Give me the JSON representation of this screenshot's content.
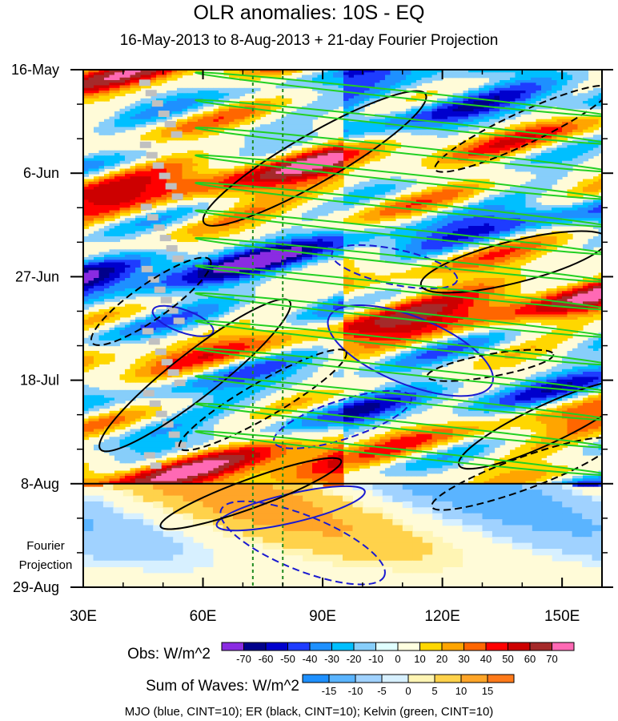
{
  "chart_data": {
    "type": "heatmap",
    "title": "OLR anomalies: 10S - EQ",
    "subtitle": "16-May-2013 to 8-Aug-2013 + 21-day Fourier Projection",
    "x_ticks": [
      {
        "label": "30E",
        "lon": 30
      },
      {
        "label": "60E",
        "lon": 60
      },
      {
        "label": "90E",
        "lon": 90
      },
      {
        "label": "120E",
        "lon": 120
      },
      {
        "label": "150E",
        "lon": 150
      }
    ],
    "xlim": [
      30,
      160
    ],
    "y_ticks": [
      {
        "label": "16-May",
        "day": 0
      },
      {
        "label": "6-Jun",
        "day": 21
      },
      {
        "label": "27-Jun",
        "day": 42
      },
      {
        "label": "18-Jul",
        "day": 63
      },
      {
        "label": "8-Aug",
        "day": 84
      },
      {
        "label": "29-Aug",
        "day": 105
      }
    ],
    "ylim_days": [
      0,
      105
    ],
    "observation_end_day": 84,
    "projection_label": [
      "Fourier",
      "Projection"
    ],
    "reference_lons": [
      72.5,
      80
    ],
    "obs_colorbar": {
      "title": "Obs: W/m^2",
      "levels": [
        "-70",
        "-60",
        "-50",
        "-40",
        "-30",
        "-20",
        "-10",
        "0",
        "10",
        "20",
        "30",
        "40",
        "50",
        "60",
        "70"
      ],
      "colors": [
        "#8a2be2",
        "#00008b",
        "#0000cd",
        "#1e3cff",
        "#1e90ff",
        "#00bfff",
        "#87cefa",
        "#e0ffff",
        "#ffffe0",
        "#ffd700",
        "#ffa500",
        "#ff6600",
        "#ff0000",
        "#cd0000",
        "#a52a2a",
        "#ff69b4"
      ]
    },
    "waves_colorbar": {
      "title": "Sum of Waves: W/m^2",
      "levels": [
        "-15",
        "-10",
        "-5",
        "0",
        "5",
        "10",
        "15"
      ],
      "colors": [
        "#1e90ff",
        "#5ab4ff",
        "#a0d2ff",
        "#d7f0ff",
        "#fff5b4",
        "#ffd24b",
        "#ffa528",
        "#ff7a1a"
      ]
    },
    "legend_text": "MJO (blue, CINT=10); ER (black, CINT=10); Kelvin (green, CINT=10)",
    "contour_colors": {
      "mjo": "#1a1ad0",
      "er": "#000000",
      "kelvin": "#22d022",
      "reference": "#1f8a1f",
      "missing": "#c0c0c0"
    }
  }
}
